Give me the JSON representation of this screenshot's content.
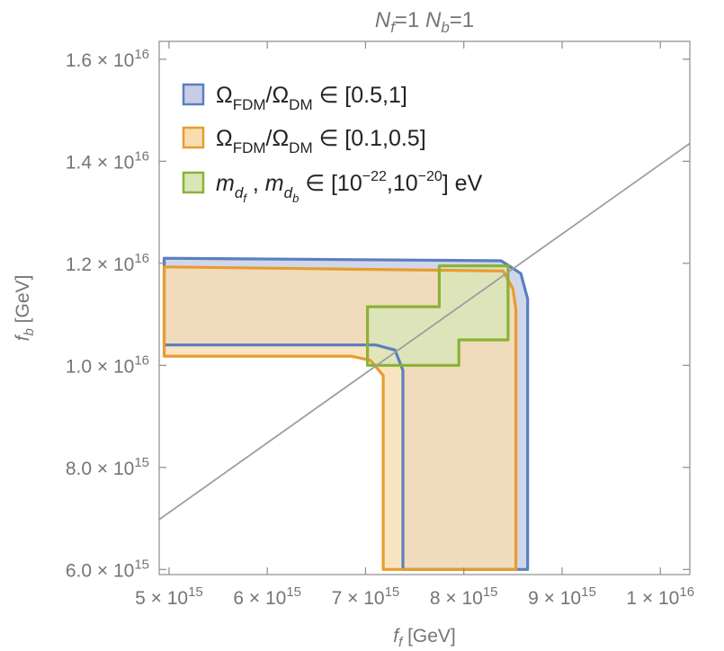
{
  "chart_data": {
    "type": "area",
    "title": "N_f=1  N_b=1",
    "title_parts": {
      "n1": "N",
      "n1_sub": "f",
      "eq1": "=1",
      "n2": "N",
      "n2_sub": "b",
      "eq2": "=1"
    },
    "xlabel": {
      "var": "f",
      "sub": "f",
      "unit": "[GeV]"
    },
    "ylabel": {
      "var": "f",
      "sub": "b",
      "unit": "[GeV]"
    },
    "xlim": [
      4900000000000000.0,
      1.03e+16
    ],
    "ylim": [
      5900000000000000.0,
      1.635e+16
    ],
    "x_ticks": [
      {
        "value": 5000000000000000.0,
        "mant": "5",
        "exp": "15"
      },
      {
        "value": 6000000000000000.0,
        "mant": "6",
        "exp": "15"
      },
      {
        "value": 7000000000000000.0,
        "mant": "7",
        "exp": "15"
      },
      {
        "value": 8000000000000000.0,
        "mant": "8",
        "exp": "15"
      },
      {
        "value": 9000000000000000.0,
        "mant": "9",
        "exp": "15"
      },
      {
        "value": 1e+16,
        "mant": "1",
        "exp": "16"
      }
    ],
    "y_ticks": [
      {
        "value": 6000000000000000.0,
        "mant": "6.0",
        "exp": "15"
      },
      {
        "value": 8000000000000000.0,
        "mant": "8.0",
        "exp": "15"
      },
      {
        "value": 1e+16,
        "mant": "1.0",
        "exp": "16"
      },
      {
        "value": 1.2e+16,
        "mant": "1.2",
        "exp": "16"
      },
      {
        "value": 1.4e+16,
        "mant": "1.4",
        "exp": "16"
      },
      {
        "value": 1.6e+16,
        "mant": "1.6",
        "exp": "16"
      }
    ],
    "times_sign": "×",
    "ten": "10",
    "legend_position": "top-left",
    "legend": [
      {
        "key": "blue",
        "parts": [
          {
            "t": "Ω"
          },
          {
            "t": "FDM",
            "sub": true
          },
          {
            "t": "/Ω"
          },
          {
            "t": "DM",
            "sub": true
          },
          {
            "t": " ∈ [0.5,1]"
          }
        ]
      },
      {
        "key": "orange",
        "parts": [
          {
            "t": "Ω"
          },
          {
            "t": "FDM",
            "sub": true
          },
          {
            "t": "/Ω"
          },
          {
            "t": "DM",
            "sub": true
          },
          {
            "t": " ∈ [0.1,0.5]"
          }
        ]
      },
      {
        "key": "green",
        "parts": [
          {
            "t": "m",
            "italic": true
          },
          {
            "t": "d",
            "sub": true,
            "italic": true
          },
          {
            "t": "f",
            "subsub": true,
            "italic": true
          },
          {
            "t": " , "
          },
          {
            "t": "m",
            "italic": true
          },
          {
            "t": "d",
            "sub": true,
            "italic": true
          },
          {
            "t": "b",
            "subsub": true,
            "italic": true
          },
          {
            "t": "  ∈ [10"
          },
          {
            "t": "−22",
            "sup": true
          },
          {
            "t": ",10"
          },
          {
            "t": "−20",
            "sup": true
          },
          {
            "t": "] eV"
          }
        ]
      }
    ],
    "series": [
      {
        "key": "blue",
        "stroke": "#5b7fbf",
        "fill": "#c6cde6",
        "points": [
          [
            4950000000000000.0,
            1.21e+16
          ],
          [
            8380000000000000.0,
            1.205e+16
          ],
          [
            8580000000000000.0,
            1.18e+16
          ],
          [
            8650000000000000.0,
            1.13e+16
          ],
          [
            8650000000000000.0,
            6000000000000000.0
          ],
          [
            7380000000000000.0,
            6000000000000000.0
          ],
          [
            7380000000000000.0,
            9900000000000000.0
          ],
          [
            7300000000000000.0,
            1.03e+16
          ],
          [
            7100000000000000.0,
            1.04e+16
          ],
          [
            4950000000000000.0,
            1.04e+16
          ]
        ]
      },
      {
        "key": "orange",
        "stroke": "#e89c2d",
        "fill": "#f8ddb2",
        "points": [
          [
            4950000000000000.0,
            1.193e+16
          ],
          [
            8400000000000000.0,
            1.185e+16
          ],
          [
            8500000000000000.0,
            1.15e+16
          ],
          [
            8530000000000000.0,
            1.11e+16
          ],
          [
            8530000000000000.0,
            6000000000000000.0
          ],
          [
            7180000000000000.0,
            6000000000000000.0
          ],
          [
            7180000000000000.0,
            9800000000000000.0
          ],
          [
            7050000000000000.0,
            1.01e+16
          ],
          [
            6850000000000000.0,
            1.018e+16
          ],
          [
            4950000000000000.0,
            1.018e+16
          ]
        ]
      },
      {
        "key": "green",
        "stroke": "#8ab236",
        "fill": "#d9e6b8",
        "points": [
          [
            7750000000000000.0,
            1.195e+16
          ],
          [
            8450000000000000.0,
            1.195e+16
          ],
          [
            8450000000000000.0,
            1.05e+16
          ],
          [
            7950000000000000.0,
            1.05e+16
          ],
          [
            7950000000000000.0,
            1e+16
          ],
          [
            7020000000000000.0,
            1e+16
          ],
          [
            7020000000000000.0,
            1.115e+16
          ],
          [
            7750000000000000.0,
            1.115e+16
          ]
        ]
      }
    ],
    "diagonal": {
      "stroke": "#9e9e9e",
      "points": [
        [
          4900000000000000.0,
          6980000000000000.0
        ],
        [
          1.03e+16,
          1.435e+16
        ]
      ]
    }
  }
}
